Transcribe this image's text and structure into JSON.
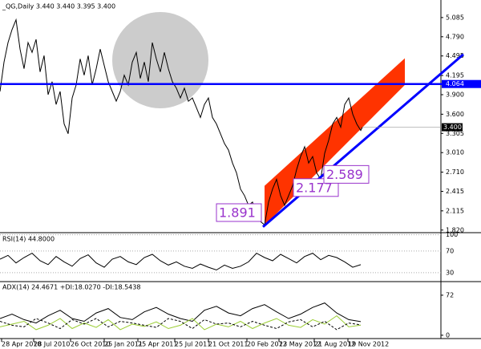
{
  "chart_data": {
    "type": "line",
    "title": "_QG,Daily 3.440 3.440 3.395 3.400",
    "xlim": [
      0,
      550
    ],
    "xticks": [
      {
        "value": 2,
        "label": "28 Apr 2010"
      },
      {
        "value": 42,
        "label": "28 Jul 2010"
      },
      {
        "value": 88,
        "label": "26 Oct 2010"
      },
      {
        "value": 130,
        "label": "25 Jan 2011"
      },
      {
        "value": 172,
        "label": "25 Apr 2011"
      },
      {
        "value": 218,
        "label": "25 Jul 2011"
      },
      {
        "value": 260,
        "label": "21 Oct 2011"
      },
      {
        "value": 308,
        "label": "20 Feb 2012"
      },
      {
        "value": 348,
        "label": "23 May 2012"
      },
      {
        "value": 392,
        "label": "21 Aug 2012"
      },
      {
        "value": 434,
        "label": "19 Nov 2012"
      }
    ],
    "ylim": [
      1.78,
      5.33
    ],
    "yticks": [
      5.085,
      {
        "value": 4.79,
        "label": "4.790"
      },
      4.495,
      4.195,
      {
        "value": 3.9,
        "label": "3.900"
      },
      {
        "value": 3.6,
        "label": "3.600"
      },
      3.305,
      {
        "value": 3.01,
        "label": "3.010"
      },
      {
        "value": 2.71,
        "label": "2.710"
      },
      2.415,
      2.115,
      {
        "value": 1.82,
        "label": "1.820"
      }
    ],
    "series": [
      {
        "color": "#000000",
        "x": [
          0,
          5,
          10,
          15,
          20,
          25,
          30,
          35,
          40,
          45,
          50,
          55,
          60,
          65,
          70,
          75,
          80,
          85,
          90,
          95,
          100,
          105,
          110,
          115,
          120,
          125,
          130,
          135,
          140,
          145,
          150,
          155,
          160,
          165,
          170,
          175,
          180,
          185,
          190,
          195,
          200,
          205,
          210,
          215,
          220,
          225,
          230,
          235,
          240,
          245,
          250,
          255,
          260,
          265,
          270,
          275,
          280,
          285,
          290,
          295,
          300,
          305,
          310,
          315,
          320,
          325,
          330,
          335,
          340,
          345,
          350,
          355,
          360,
          365,
          370,
          375,
          380,
          385,
          390,
          395,
          400,
          405,
          410,
          415,
          420,
          425,
          430,
          435,
          440,
          445,
          450,
          452
        ],
        "values": [
          3.95,
          4.4,
          4.7,
          4.9,
          5.05,
          4.6,
          4.3,
          4.7,
          4.55,
          4.75,
          4.25,
          4.5,
          3.9,
          4.1,
          3.75,
          3.95,
          3.45,
          3.3,
          3.85,
          4.05,
          4.45,
          4.2,
          4.5,
          4.05,
          4.3,
          4.6,
          4.35,
          4.1,
          3.95,
          3.8,
          3.95,
          4.2,
          4.05,
          4.4,
          4.55,
          4.15,
          4.4,
          4.1,
          4.7,
          4.45,
          4.25,
          4.55,
          4.3,
          4.1,
          4.0,
          3.85,
          4.0,
          3.8,
          3.85,
          3.7,
          3.55,
          3.75,
          3.85,
          3.55,
          3.45,
          3.3,
          3.15,
          3.05,
          2.85,
          2.7,
          2.45,
          2.35,
          2.2,
          2.25,
          2.05,
          1.95,
          1.9,
          2.25,
          2.45,
          2.6,
          2.35,
          2.2,
          2.35,
          2.5,
          2.75,
          2.95,
          3.1,
          2.85,
          2.95,
          2.7,
          2.6,
          3.0,
          3.2,
          3.45,
          3.55,
          3.4,
          3.75,
          3.85,
          3.6,
          3.45,
          3.35,
          3.4
        ]
      }
    ],
    "hline": {
      "value": 4.064,
      "color": "#0000ff"
    },
    "last_price": {
      "value": 3.4,
      "label": "3.400"
    },
    "trendline": {
      "color": "#0000ff",
      "x": [
        328,
        578
      ],
      "values": [
        1.87,
        4.52
      ]
    },
    "channel": {
      "color": "#ff3300",
      "x": [
        330,
        505,
        505,
        330
      ],
      "values": [
        2.5,
        4.46,
        4.05,
        1.89
      ]
    },
    "annotations": [
      {
        "x": 330,
        "value": 1.891
      },
      {
        "x": 360,
        "value": 2.177
      },
      {
        "x": 400,
        "value": 2.589
      }
    ],
    "rsi": {
      "label": "RSI(14) 44.8000",
      "ylim": [
        15,
        101
      ],
      "yticks": [
        100,
        70,
        30
      ],
      "color": "#000000",
      "x": [
        0,
        10,
        20,
        30,
        40,
        50,
        60,
        70,
        80,
        90,
        100,
        110,
        120,
        130,
        140,
        150,
        160,
        170,
        180,
        190,
        200,
        210,
        220,
        230,
        240,
        250,
        260,
        270,
        280,
        290,
        300,
        310,
        320,
        330,
        340,
        350,
        360,
        370,
        380,
        390,
        400,
        410,
        420,
        430,
        440,
        450
      ],
      "values": [
        55,
        62,
        48,
        58,
        66,
        52,
        45,
        60,
        50,
        42,
        56,
        63,
        48,
        40,
        55,
        60,
        50,
        45,
        58,
        64,
        52,
        44,
        50,
        42,
        38,
        46,
        40,
        35,
        44,
        38,
        42,
        50,
        66,
        58,
        52,
        64,
        56,
        48,
        60,
        66,
        54,
        62,
        58,
        50,
        40,
        44.8
      ]
    },
    "adx": {
      "label": "ADX(14) 24.4671 +DI:18.0270 -DI:18.5438",
      "ylim": [
        -6,
        95
      ],
      "yticks": [
        72,
        0
      ],
      "x": [
        0,
        15,
        30,
        45,
        60,
        75,
        90,
        105,
        120,
        135,
        150,
        165,
        180,
        195,
        210,
        225,
        240,
        255,
        270,
        285,
        300,
        315,
        330,
        345,
        360,
        375,
        390,
        405,
        420,
        435,
        450
      ],
      "series": [
        {
          "color": "#000000",
          "values": [
            30,
            38,
            28,
            22,
            35,
            45,
            30,
            25,
            40,
            48,
            32,
            28,
            42,
            50,
            38,
            30,
            25,
            45,
            52,
            40,
            35,
            48,
            55,
            42,
            30,
            38,
            50,
            58,
            40,
            28,
            24.4671
          ]
        },
        {
          "color": "#9acd32",
          "values": [
            15,
            20,
            25,
            10,
            18,
            30,
            12,
            22,
            14,
            28,
            10,
            20,
            16,
            24,
            12,
            18,
            30,
            10,
            20,
            15,
            25,
            12,
            22,
            30,
            18,
            14,
            28,
            20,
            35,
            15,
            18.027
          ]
        },
        {
          "color": "#000000",
          "dash": "3,2",
          "values": [
            25,
            18,
            15,
            30,
            22,
            12,
            28,
            20,
            30,
            15,
            25,
            22,
            18,
            14,
            30,
            25,
            12,
            28,
            20,
            22,
            15,
            25,
            18,
            12,
            24,
            28,
            15,
            25,
            10,
            22,
            18.5438
          ]
        }
      ]
    }
  }
}
